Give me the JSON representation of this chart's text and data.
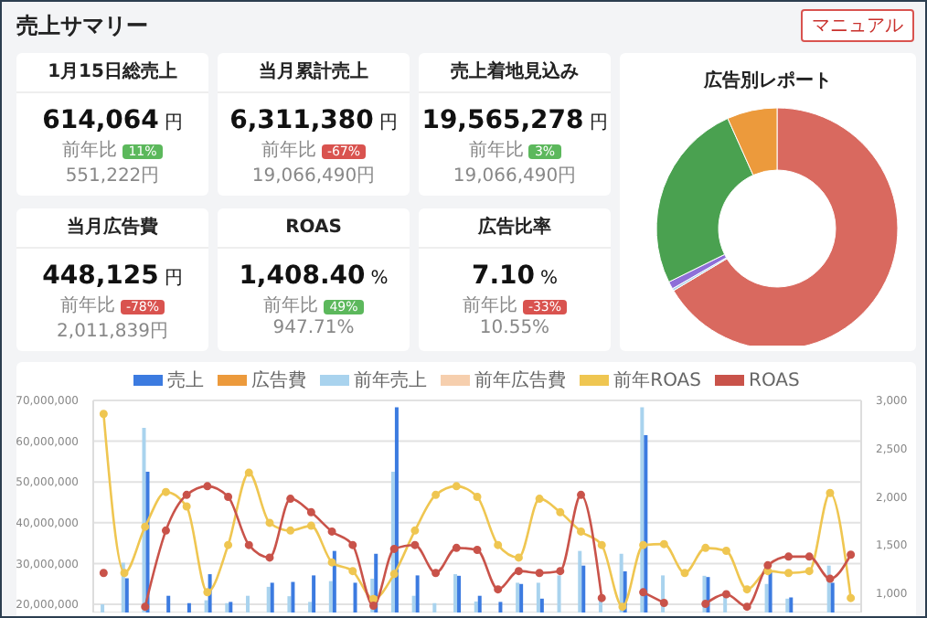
{
  "chart_data": [
    {
      "type": "other",
      "title": "売上サマリー",
      "annotations": [
        "マニュアル"
      ]
    },
    {
      "type": "other",
      "title": "1月15日総売上",
      "annotations": [
        "614,064",
        "円",
        "前年比",
        "11%",
        "551,222円"
      ],
      "color": "#5cb85c"
    },
    {
      "type": "other",
      "title": "当月累計売上",
      "annotations": [
        "6,311,380",
        "円",
        "前年比",
        "-67%",
        "19,066,490円"
      ],
      "color": "#d9534f"
    },
    {
      "type": "other",
      "title": "売上着地見込み",
      "annotations": [
        "19,565,278",
        "円",
        "前年比",
        "3%",
        "19,066,490円"
      ],
      "color": "#5cb85c"
    },
    {
      "type": "other",
      "title": "当月広告費",
      "annotations": [
        "448,125",
        "円",
        "前年比",
        "-78%",
        "2,011,839円"
      ],
      "color": "#d9534f"
    },
    {
      "type": "other",
      "title": "ROAS",
      "annotations": [
        "1,408.40",
        "%",
        "前年比",
        "49%",
        "947.71%"
      ],
      "color": "#5cb85c"
    },
    {
      "type": "other",
      "title": "広告比率",
      "annotations": [
        "7.10",
        "%",
        "前年比",
        "-33%",
        "10.55%"
      ],
      "color": "#d9534f"
    },
    {
      "type": "donut",
      "title": "広告別レポート",
      "categories": [
        null,
        null,
        null,
        null,
        null
      ],
      "values": [
        66.4,
        0.3,
        1.0,
        25.6,
        6.7
      ],
      "colors": [
        "#d9695f",
        "#a8d4ec",
        "#8e6fd8",
        "#4aa150",
        "#ec9a3c"
      ]
    },
    {
      "type": "bar",
      "categories": [
        null,
        null,
        null,
        null,
        null,
        null,
        null,
        null,
        null,
        null,
        null,
        null,
        null,
        null,
        null,
        null,
        null,
        null,
        null,
        null,
        null,
        null,
        null,
        null,
        null,
        null,
        null,
        null,
        null,
        null,
        null,
        null,
        null,
        null,
        null,
        null,
        null
      ],
      "tick_labels": "y",
      "grid": true,
      "legend": "top",
      "marker": "circle",
      "ylim": [
        18000000,
        70000000
      ],
      "yticks": [
        {
          "value": 20000000,
          "label": "20,000,000"
        },
        {
          "value": 30000000,
          "label": "30,000,000"
        },
        {
          "value": 40000000,
          "label": "40,000,000"
        },
        {
          "value": 50000000,
          "label": "50,000,000"
        },
        {
          "value": 60000000,
          "label": "60,000,000"
        },
        {
          "value": 70000000,
          "label": "70,000,000"
        }
      ],
      "y2lim": [
        800,
        3000
      ],
      "y2ticks": [
        {
          "value": 1000,
          "label": "1,000"
        },
        {
          "value": 1500,
          "label": "1,500"
        },
        {
          "value": 2000,
          "label": "2,000"
        },
        {
          "value": 2500,
          "label": "2,500"
        },
        {
          "value": 3000,
          "label": "3,000"
        }
      ],
      "series": [
        {
          "name": "売上",
          "type": "bar",
          "color": "#3c7be0",
          "values": [
            null,
            26400000,
            52500000,
            22100000,
            20300000,
            27400000,
            20600000,
            null,
            25300000,
            25500000,
            27100000,
            33100000,
            25300000,
            32400000,
            68300000,
            27100000,
            null,
            27000000,
            22100000,
            20600000,
            25000000,
            21400000,
            null,
            29500000,
            null,
            28100000,
            61500000,
            null,
            null,
            26700000,
            null,
            null,
            28100000,
            21700000,
            null,
            25300000,
            null
          ]
        },
        {
          "name": "広告費",
          "type": "bar",
          "color": "#ec9a3c",
          "values": [
            null,
            null,
            null,
            null,
            null,
            null,
            null,
            null,
            null,
            null,
            null,
            null,
            null,
            null,
            null,
            null,
            null,
            null,
            null,
            null,
            null,
            null,
            null,
            null,
            null,
            null,
            null,
            null,
            null,
            null,
            null,
            null,
            null,
            null,
            null,
            null,
            null
          ]
        },
        {
          "name": "前年売上",
          "type": "bar",
          "color": "#a9d3ee",
          "values": [
            20000000,
            30200000,
            63300000,
            null,
            null,
            21000000,
            20300000,
            22100000,
            24300000,
            22000000,
            20600000,
            25700000,
            null,
            26300000,
            52500000,
            22100000,
            20300000,
            27400000,
            20700000,
            null,
            25300000,
            25300000,
            27100000,
            33100000,
            21000000,
            32400000,
            68300000,
            27100000,
            null,
            27000000,
            22000000,
            null,
            25000000,
            21400000,
            null,
            29500000,
            null
          ]
        },
        {
          "name": "前年広告費",
          "type": "bar",
          "color": "#f6cfae",
          "values": [
            null,
            null,
            null,
            null,
            null,
            null,
            null,
            null,
            null,
            null,
            null,
            null,
            null,
            null,
            null,
            null,
            null,
            null,
            null,
            null,
            null,
            null,
            null,
            null,
            null,
            null,
            null,
            null,
            null,
            null,
            null,
            null,
            null,
            null,
            null,
            null,
            null
          ]
        },
        {
          "name": "前年ROAS",
          "type": "line",
          "axis": "y2",
          "color": "#efc651",
          "values": [
            2860,
            1210,
            1690,
            2050,
            1900,
            1010,
            1500,
            2250,
            1730,
            1650,
            1700,
            1320,
            1230,
            940,
            1200,
            1650,
            2020,
            2110,
            2000,
            1500,
            1370,
            1980,
            1840,
            1640,
            1500,
            860,
            1500,
            1510,
            1210,
            1470,
            1440,
            1040,
            1230,
            1210,
            1230,
            2040,
            950
          ]
        },
        {
          "name": "ROAS",
          "type": "line",
          "axis": "y2",
          "color": "#c9534a",
          "values": [
            1210,
            null,
            860,
            1650,
            2020,
            2110,
            2000,
            1500,
            1370,
            1980,
            1840,
            1640,
            1500,
            870,
            1460,
            1500,
            1210,
            1470,
            1450,
            1040,
            1230,
            1210,
            1230,
            2020,
            950,
            null,
            1010,
            900,
            null,
            890,
            990,
            860,
            1290,
            1380,
            1380,
            1150,
            1400
          ]
        }
      ]
    }
  ]
}
